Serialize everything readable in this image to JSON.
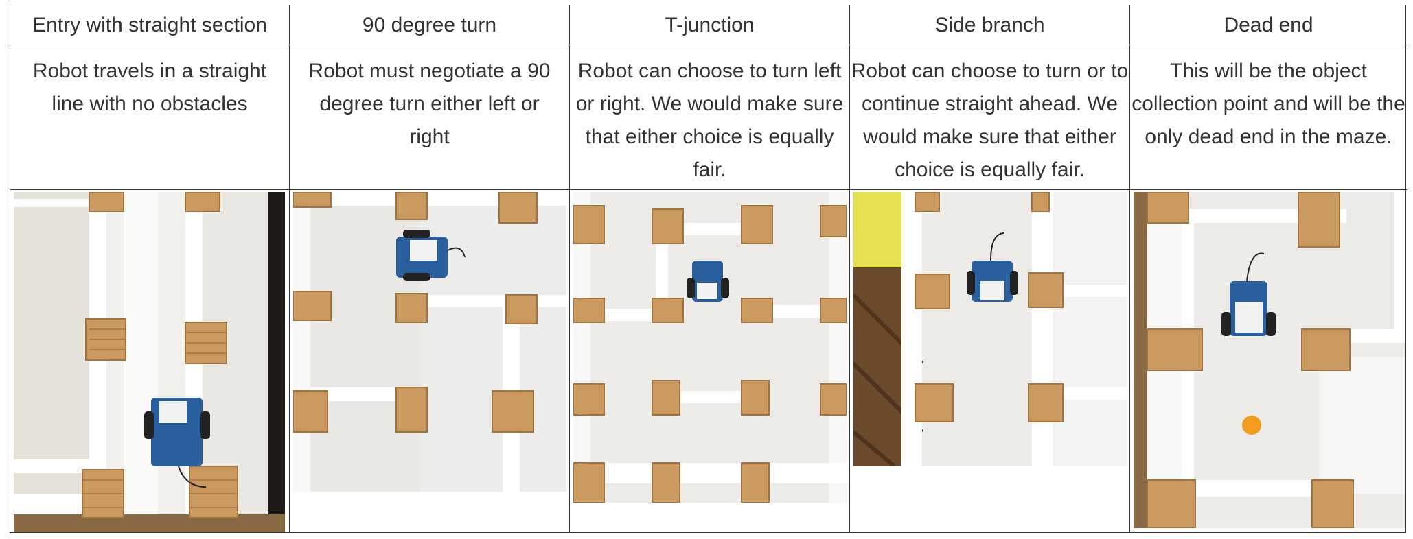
{
  "columns": [
    {
      "header": "Entry with straight section",
      "description": "Robot travels in a straight line with no obstacles"
    },
    {
      "header": "90 degree turn",
      "description": "Robot must negotiate a 90 degree turn either left or right"
    },
    {
      "header": "T-junction",
      "description": "Robot can choose to turn left or right. We would make sure that either choice is equally fair."
    },
    {
      "header": "Side branch",
      "description": "Robot can choose to turn or to continue straight ahead. We would make sure that either choice is equally fair."
    },
    {
      "header": "Dead end",
      "description": "This will be the object collection point and will be the only dead end in the maze."
    }
  ],
  "colors": {
    "wall": "#f7f7f5",
    "floor": "#ecebe7",
    "wood": "#c9995e",
    "board": "#2a5f9e",
    "ball": "#f39c1c",
    "floor_dark": "#6b4a2c"
  }
}
